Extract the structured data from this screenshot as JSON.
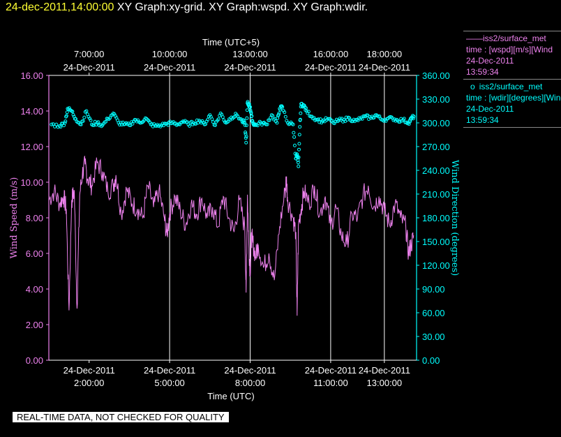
{
  "header": {
    "datetime": "24-dec-2011,14:00:00",
    "graphs": "XY Graph:xy-grid.  XY Graph:wspd.  XY Graph:wdir."
  },
  "legend": {
    "wspd": {
      "symbol": "——",
      "name": "iss2/surface_met",
      "line1": "time : [wspd][m/s][Wind",
      "date": "24-Dec-2011",
      "time": "13:59:34"
    },
    "wdir": {
      "symbol": "o",
      "name": "iss2/surface_met",
      "line1": "time : [wdir][degrees][Wind",
      "date": "24-Dec-2011",
      "time": "13:59:34"
    }
  },
  "disclaimer": "REAL-TIME DATA, NOT CHECKED FOR QUALITY",
  "colors": {
    "wspd": "#ee82ee",
    "wdir": "#00ffff",
    "header_date": "#ffff33",
    "grid": "#ffffff"
  },
  "chart_data": {
    "type": "line",
    "x_unit": "hours (UTC), 24-Dec-2011",
    "xlim": [
      0.5,
      14.2
    ],
    "top_axis": {
      "label": "Time (UTC+5)",
      "ticks": [
        {
          "hour": 2,
          "time": "7:00:00",
          "date": "24-Dec-2011"
        },
        {
          "hour": 5,
          "time": "10:00:00",
          "date": "24-Dec-2011"
        },
        {
          "hour": 8,
          "time": "13:00:00",
          "date": "24-Dec-2011"
        },
        {
          "hour": 11,
          "time": "16:00:00",
          "date": "24-Dec-2011"
        },
        {
          "hour": 13,
          "time": "18:00:00",
          "date": "24-Dec-2011"
        }
      ]
    },
    "bottom_axis": {
      "label": "Time (UTC)",
      "ticks": [
        {
          "hour": 2,
          "time": "2:00:00",
          "date": "24-Dec-2011"
        },
        {
          "hour": 5,
          "time": "5:00:00",
          "date": "24-Dec-2011"
        },
        {
          "hour": 8,
          "time": "8:00:00",
          "date": "24-Dec-2011"
        },
        {
          "hour": 11,
          "time": "11:00:00",
          "date": "24-Dec-2011"
        },
        {
          "hour": 13,
          "time": "13:00:00",
          "date": "24-Dec-2011"
        }
      ]
    },
    "vertical_grid_hours": [
      5,
      8,
      11,
      13
    ],
    "left_axis": {
      "label": "Wind Speed (m/s)",
      "ylim": [
        0,
        16
      ],
      "ticks": [
        "0.00",
        "2.00",
        "4.00",
        "6.00",
        "8.00",
        "10.00",
        "12.00",
        "14.00",
        "16.00"
      ]
    },
    "right_axis": {
      "label": "Wind Direction (degrees)",
      "ylim": [
        0,
        360
      ],
      "ticks": [
        "0.00",
        "30.00",
        "60.00",
        "90.00",
        "120.00",
        "150.00",
        "180.00",
        "210.00",
        "240.00",
        "270.00",
        "300.00",
        "330.00",
        "360.00"
      ]
    },
    "series": [
      {
        "name": "iss2/surface_met",
        "axis": "left",
        "style": "line",
        "x": [
          0.5,
          0.7,
          0.9,
          1.05,
          1.15,
          1.25,
          1.35,
          1.45,
          1.55,
          1.65,
          1.75,
          1.85,
          1.95,
          2.1,
          2.3,
          2.5,
          2.7,
          2.9,
          3.0,
          3.2,
          3.4,
          3.6,
          3.8,
          4.0,
          4.2,
          4.4,
          4.6,
          4.8,
          4.9,
          5.0,
          5.2,
          5.4,
          5.6,
          5.8,
          6.0,
          6.2,
          6.4,
          6.6,
          6.8,
          7.0,
          7.2,
          7.4,
          7.6,
          7.8,
          7.85,
          7.9,
          7.95,
          8.0,
          8.05,
          8.1,
          8.2,
          8.3,
          8.5,
          8.7,
          8.9,
          9.1,
          9.3,
          9.35,
          9.4,
          9.6,
          9.7,
          9.75,
          9.8,
          9.9,
          10.0,
          10.2,
          10.4,
          10.6,
          10.8,
          11.0,
          11.2,
          11.4,
          11.6,
          11.8,
          12.0,
          12.2,
          12.4,
          12.6,
          12.8,
          13.0,
          13.2,
          13.4,
          13.6,
          13.8,
          13.9,
          14.0,
          14.1
        ],
        "values": [
          9.0,
          9.5,
          8.8,
          9.2,
          8.5,
          2.8,
          9.0,
          9.5,
          2.9,
          9.3,
          10.5,
          11.0,
          10.2,
          9.8,
          11.1,
          10.6,
          9.5,
          9.8,
          10.4,
          8.2,
          9.6,
          8.8,
          8.5,
          8.0,
          9.8,
          8.6,
          9.5,
          8.0,
          7.0,
          8.3,
          9.2,
          8.4,
          7.6,
          8.8,
          8.2,
          9.1,
          8.0,
          8.6,
          7.5,
          9.2,
          8.0,
          7.2,
          9.0,
          7.4,
          3.8,
          9.3,
          6.5,
          4.9,
          7.0,
          6.6,
          5.8,
          6.5,
          5.2,
          6.0,
          4.5,
          7.5,
          9.5,
          10.2,
          9.0,
          8.0,
          7.2,
          2.5,
          7.6,
          8.5,
          9.5,
          8.8,
          9.8,
          8.2,
          9.2,
          7.5,
          8.6,
          7.0,
          6.5,
          8.2,
          8.0,
          9.2,
          9.8,
          8.6,
          9.2,
          8.4,
          7.6,
          8.8,
          8.0,
          7.5,
          6.0,
          6.5,
          7.0
        ]
      },
      {
        "name": "iss2/surface_met",
        "axis": "right",
        "style": "points",
        "x": [
          0.6,
          0.9,
          1.1,
          1.2,
          1.35,
          1.5,
          1.7,
          1.9,
          2.1,
          2.3,
          2.5,
          2.7,
          2.9,
          3.1,
          3.3,
          3.5,
          3.7,
          3.9,
          4.1,
          4.3,
          4.5,
          4.7,
          4.9,
          5.1,
          5.3,
          5.5,
          5.7,
          5.9,
          6.1,
          6.3,
          6.5,
          6.7,
          6.9,
          7.1,
          7.3,
          7.5,
          7.7,
          7.8,
          7.85,
          7.9,
          7.95,
          8.0,
          8.05,
          8.1,
          8.2,
          8.4,
          8.6,
          8.8,
          9.0,
          9.1,
          9.2,
          9.4,
          9.6,
          9.7,
          9.75,
          9.8,
          9.85,
          9.9,
          10.0,
          10.1,
          10.3,
          10.5,
          10.7,
          10.9,
          11.1,
          11.3,
          11.5,
          11.7,
          11.9,
          12.1,
          12.3,
          12.5,
          12.7,
          12.9,
          13.1,
          13.3,
          13.5,
          13.7,
          13.9,
          14.0,
          14.1
        ],
        "values": [
          298,
          296,
          300,
          318,
          315,
          305,
          298,
          315,
          298,
          300,
          297,
          305,
          312,
          300,
          298,
          297,
          304,
          300,
          306,
          298,
          296,
          297,
          299,
          300,
          298,
          302,
          298,
          300,
          303,
          298,
          310,
          297,
          312,
          300,
          307,
          310,
          302,
          300,
          275,
          325,
          323,
          320,
          308,
          300,
          297,
          300,
          298,
          310,
          300,
          318,
          320,
          300,
          298,
          255,
          260,
          245,
          295,
          324,
          322,
          315,
          308,
          304,
          302,
          305,
          300,
          303,
          304,
          306,
          302,
          305,
          308,
          306,
          310,
          304,
          305,
          306,
          303,
          304,
          300,
          305,
          308
        ]
      }
    ]
  }
}
